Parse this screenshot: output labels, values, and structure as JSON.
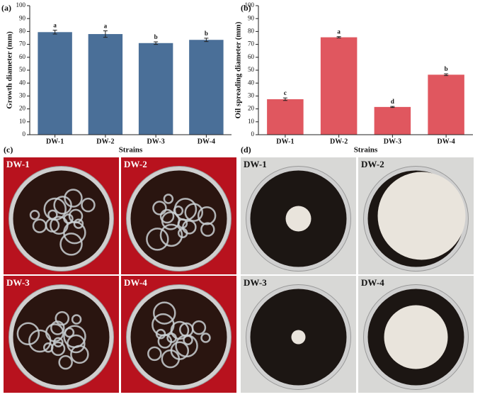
{
  "chart_data": [
    {
      "type": "bar",
      "panel": "(a)",
      "x_label": "Strains",
      "y_label": "Growth diameter (mm)",
      "categories": [
        "DW-1",
        "DW-2",
        "DW-3",
        "DW-4"
      ],
      "values": [
        79.5,
        78,
        71,
        73.5
      ],
      "errors": [
        1.5,
        2.5,
        1,
        1.3
      ],
      "labels": [
        "a",
        "a",
        "b",
        "b"
      ],
      "color": "#4a6f98",
      "ylim": [
        0,
        100
      ],
      "yticks": [
        0,
        10,
        20,
        30,
        40,
        50,
        60,
        70,
        80,
        90,
        100
      ]
    },
    {
      "type": "bar",
      "panel": "(b)",
      "x_label": "Strains",
      "y_label": "Oil spreading diameter (mm)",
      "categories": [
        "DW-1",
        "DW-2",
        "DW-3",
        "DW-4"
      ],
      "values": [
        27.5,
        75.5,
        21.5,
        46.5
      ],
      "errors": [
        1,
        0.5,
        0.4,
        0.7
      ],
      "labels": [
        "c",
        "a",
        "d",
        "b"
      ],
      "color": "#e0575f",
      "ylim": [
        0,
        100
      ],
      "yticks": [
        0,
        10,
        20,
        30,
        40,
        50,
        60,
        70,
        80,
        90,
        100
      ]
    }
  ],
  "photos": [
    {
      "panel": "(c)",
      "plates": [
        "DW-1",
        "DW-2",
        "DW-3",
        "DW-4"
      ]
    },
    {
      "panel": "(d)",
      "plates": [
        "DW-1",
        "DW-2",
        "DW-3",
        "DW-4"
      ]
    }
  ]
}
